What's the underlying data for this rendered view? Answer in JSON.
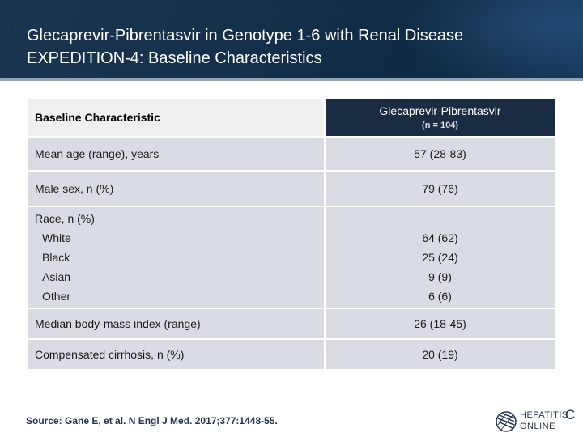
{
  "slide": {
    "title_line1": "Glecaprevir-Pibrentasvir in Genotype 1-6 with Renal Disease",
    "title_line2": "EXPEDITION-4: Baseline Characteristics"
  },
  "table": {
    "header_left": "Baseline Characteristic",
    "header_right_main": "Glecaprevir-Pibrentasvir",
    "header_right_sub": "(n = 104)",
    "rows": {
      "age": {
        "label": "Mean age (range), years",
        "value": "57 (28-83)"
      },
      "male": {
        "label": "Male sex, n (%)",
        "value": "79 (76)"
      },
      "race": {
        "label": "Race, n (%)",
        "sub": [
          {
            "label": "White",
            "value": "64 (62)"
          },
          {
            "label": "Black",
            "value": "25 (24)"
          },
          {
            "label": "Asian",
            "value": "9 (9)"
          },
          {
            "label": "Other",
            "value": "6 (6)"
          }
        ]
      },
      "bmi": {
        "label": "Median body-mass index (range)",
        "value": "26 (18-45)"
      },
      "cirrhosis": {
        "label": "Compensated cirrhosis, n (%)",
        "value": "20 (19)"
      }
    }
  },
  "source": "Source: Gane E, et al. N Engl J Med. 2017;377:1448-55.",
  "logo": {
    "line1": "HEPATITIS",
    "line2": "ONLINE",
    "letter": "C"
  },
  "colors": {
    "header_bg": "#15304a",
    "table_header_dark": "#1a2c42",
    "row_bg": "#d9dde3"
  }
}
